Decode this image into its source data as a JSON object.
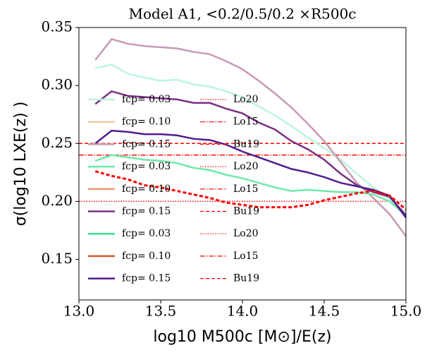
{
  "chart_data": {
    "type": "line",
    "title": "Model A1, <0.2/0.5/0.2 ×R500c",
    "xlabel": "log10 M500c [M⊙]/E(z)",
    "ylabel": "σ(log10 LXE(z) )",
    "x": [
      13.1,
      13.2,
      13.3,
      13.4,
      13.5,
      13.6,
      13.7,
      13.8,
      13.9,
      14.0,
      14.1,
      14.2,
      14.3,
      14.4,
      14.5,
      14.6,
      14.7,
      14.8,
      14.9,
      15.0
    ],
    "xlim": [
      13.0,
      15.0
    ],
    "xticks": [
      {
        "value": 13,
        "label": "13.0"
      },
      13.5,
      {
        "value": 14,
        "label": "14.0"
      },
      14.5,
      {
        "value": 15,
        "label": "15.0"
      }
    ],
    "ylim": [
      0.115,
      0.35
    ],
    "yticks": [
      0.15,
      {
        "value": 0.2,
        "label": "0.20"
      },
      0.25,
      {
        "value": 0.3,
        "label": "0.30"
      },
      0.35
    ],
    "series": [
      {
        "name": "fcp= 0.03",
        "color": "#bdf5dc",
        "values": [
          0.315,
          0.318,
          0.31,
          0.307,
          0.304,
          0.305,
          0.301,
          0.299,
          0.295,
          0.29,
          0.282,
          0.274,
          0.265,
          0.255,
          0.246,
          0.236,
          0.224,
          0.212,
          0.202,
          0.19
        ]
      },
      {
        "name": "fcp= 0.10",
        "color": "#f5c9a6",
        "values": [
          null,
          null,
          null,
          null,
          null,
          null,
          null,
          null,
          null,
          null,
          null,
          null,
          null,
          null,
          null,
          null,
          null,
          null,
          null,
          null
        ]
      },
      {
        "name": "fcp= 0.15",
        "color": "#c79ab5",
        "values": [
          0.322,
          0.34,
          0.336,
          0.334,
          0.333,
          0.332,
          0.329,
          0.327,
          0.321,
          0.314,
          0.304,
          0.293,
          0.281,
          0.267,
          0.252,
          0.234,
          0.216,
          0.203,
          0.189,
          0.17
        ]
      },
      {
        "name": "fcp= 0.03",
        "color": "#6ee9a9",
        "values": [
          0.235,
          0.24,
          0.238,
          0.236,
          0.235,
          0.233,
          0.229,
          0.227,
          0.223,
          0.22,
          0.216,
          0.212,
          0.209,
          0.21,
          0.209,
          0.208,
          0.208,
          0.206,
          0.2,
          0.188
        ]
      },
      {
        "name": "fcp= 0.10",
        "color": "#ec9a6c",
        "values": [
          null,
          null,
          null,
          null,
          null,
          null,
          null,
          null,
          null,
          null,
          null,
          null,
          null,
          null,
          null,
          null,
          null,
          null,
          null,
          null
        ]
      },
      {
        "name": "fcp= 0.15",
        "color": "#7b2f84",
        "values": [
          0.284,
          0.295,
          0.291,
          0.29,
          0.289,
          0.288,
          0.285,
          0.285,
          0.28,
          0.276,
          0.268,
          0.262,
          0.252,
          0.245,
          0.236,
          0.224,
          0.214,
          0.208,
          0.204,
          0.188
        ]
      },
      {
        "name": "fcp= 0.03",
        "color": "#33e48c",
        "values": [
          null,
          null,
          null,
          null,
          null,
          null,
          null,
          null,
          null,
          null,
          null,
          null,
          null,
          null,
          null,
          null,
          null,
          null,
          null,
          null
        ]
      },
      {
        "name": "fcp= 0.10",
        "color": "#d4582a",
        "values": [
          null,
          null,
          null,
          null,
          null,
          null,
          null,
          null,
          null,
          null,
          null,
          null,
          null,
          null,
          null,
          null,
          null,
          null,
          null,
          null
        ]
      },
      {
        "name": "fcp= 0.15",
        "color": "#4e1e8c",
        "values": [
          0.25,
          0.261,
          0.26,
          0.258,
          0.258,
          0.257,
          0.254,
          0.253,
          0.249,
          0.243,
          0.238,
          0.233,
          0.228,
          0.225,
          0.221,
          0.216,
          0.213,
          0.21,
          0.205,
          0.186
        ]
      }
    ],
    "extra_line": {
      "color": "#ff0000",
      "style": "dashed",
      "values": [
        0.226,
        0.222,
        0.219,
        0.214,
        0.212,
        0.209,
        0.206,
        0.203,
        0.199,
        0.197,
        0.195,
        0.195,
        0.195,
        0.197,
        0.201,
        0.204,
        0.207,
        0.209,
        0.205,
        0.193
      ]
    },
    "references": [
      {
        "name": "Lo20",
        "value": 0.2,
        "style": "dotted",
        "color": "#ff0000"
      },
      {
        "name": "Lo15",
        "value": 0.24,
        "style": "dashdot",
        "color": "#ff0000"
      },
      {
        "name": "Bu19",
        "value": 0.25,
        "style": "dashed",
        "color": "#ff0000"
      },
      {
        "name": "Lo20",
        "value": 0.2,
        "style": "dotted",
        "color": "#ff0000"
      },
      {
        "name": "Lo15",
        "value": 0.24,
        "style": "dashdot",
        "color": "#ff0000"
      },
      {
        "name": "Bu19",
        "value": 0.25,
        "style": "dashed",
        "color": "#ff0000"
      },
      {
        "name": "Lo20",
        "value": 0.2,
        "style": "dotted",
        "color": "#ff0000"
      },
      {
        "name": "Lo15",
        "value": 0.24,
        "style": "dashdot",
        "color": "#ff0000"
      },
      {
        "name": "Bu19",
        "value": 0.25,
        "style": "dashed",
        "color": "#ff0000"
      }
    ]
  }
}
